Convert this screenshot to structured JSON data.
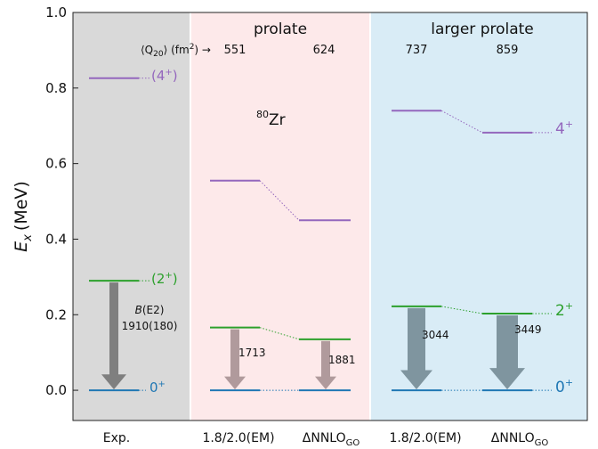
{
  "chart_data": {
    "type": "level-scheme",
    "ylabel_base": "E",
    "ylabel_sub": "x",
    "ylabel_unit": "(MeV)",
    "ylim": [
      -0.08,
      1.0
    ],
    "yticks": [
      "0.0",
      "0.2",
      "0.4",
      "0.6",
      "0.8",
      "1.0"
    ],
    "nucleus_mass": "80",
    "nucleus_symbol": "Zr",
    "q20_label": "⟨Q",
    "q20_sub": "20",
    "q20_rest": "⟩ (fm",
    "q20_sup": "2",
    "q20_arrow": ") →",
    "panels": [
      {
        "title": "",
        "background": "#d9d9d9"
      },
      {
        "title": "prolate",
        "background": "#fde9ea"
      },
      {
        "title": "larger prolate",
        "background": "#d9ecf6"
      }
    ],
    "columns": [
      {
        "label": "Exp.",
        "q20": "",
        "e2plus": 0.29,
        "e4plus": 0.826,
        "be2": "1910(180)"
      },
      {
        "label": "1.8/2.0(EM)",
        "q20": "551",
        "e2plus": 0.166,
        "e4plus": 0.555,
        "be2": "1713"
      },
      {
        "label": "ΔNNLO",
        "label_sub": "GO",
        "q20": "624",
        "e2plus": 0.135,
        "e4plus": 0.45,
        "be2": "1881"
      },
      {
        "label": "1.8/2.0(EM)",
        "q20": "737",
        "e2plus": 0.222,
        "e4plus": 0.74,
        "be2": "3044"
      },
      {
        "label": "ΔNNLO",
        "label_sub": "GO",
        "q20": "859",
        "e2plus": 0.203,
        "e4plus": 0.682,
        "be2": "3449"
      }
    ],
    "be2_title": "B(E2)",
    "levels": [
      {
        "name": "ground",
        "energy": 0.0,
        "color": "#1f77b4"
      },
      {
        "name": "two-plus",
        "color": "#2ca02c"
      },
      {
        "name": "four-plus",
        "color": "#9467bd"
      }
    ],
    "spin_labels": {
      "exp_zero": "0",
      "exp_two": "(2",
      "exp_four": "(4",
      "right_zero": "0",
      "right_two": "2",
      "right_four": "4",
      "plus": "+",
      "close": ")"
    },
    "arrow_colors": {
      "exp": "#7f7f7f",
      "prolate": "#b09a9c",
      "larger": "#7f959f"
    }
  }
}
